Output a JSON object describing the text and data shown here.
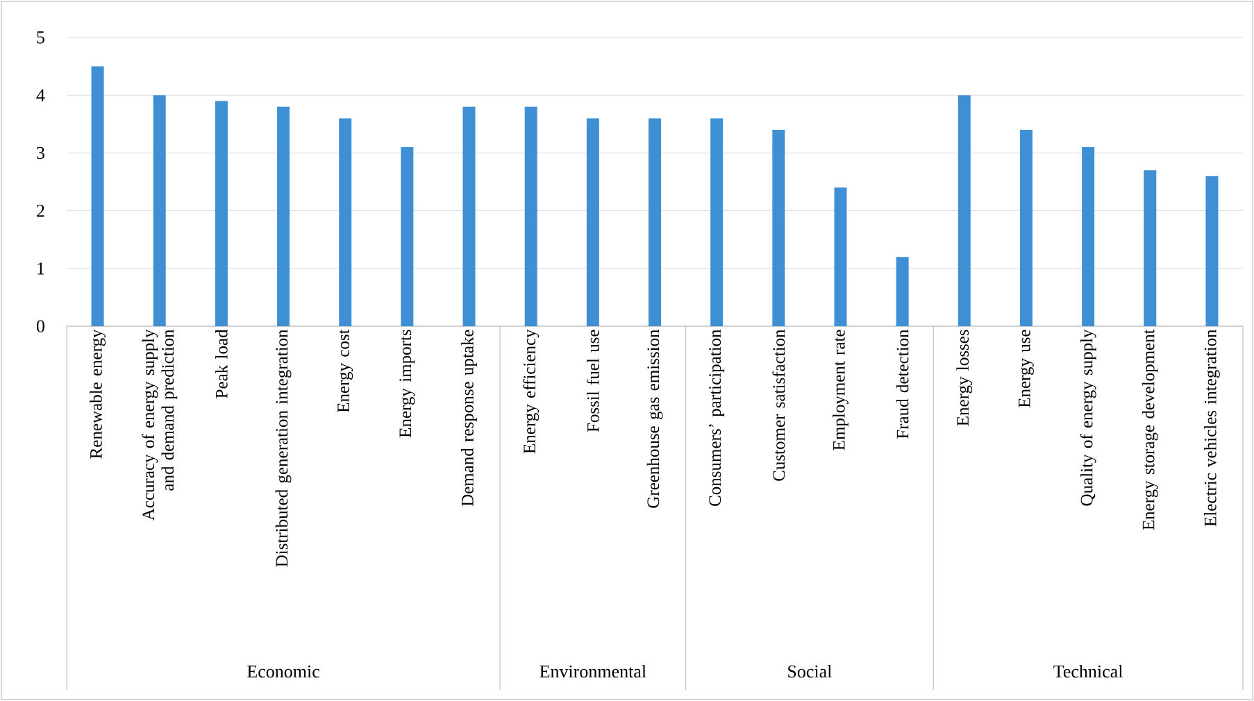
{
  "chart_data": {
    "type": "bar",
    "categories": [
      "Renewable energy",
      "Accuracy of energy supply and demand prediction",
      "Peak load",
      "Distributed generation integration",
      "Energy cost",
      "Energy imports",
      "Demand response uptake",
      "Energy efficiency",
      "Fossil fuel use",
      "Greenhouse gas emission",
      "Consumers’ participation",
      "Customer satisfaction",
      "Employment rate",
      "Fraud detection",
      "Energy losses",
      "Energy use",
      "Quality of energy supply",
      "Energy storage development",
      "Electric vehicles integration"
    ],
    "values": [
      4.5,
      4.0,
      3.9,
      3.8,
      3.6,
      3.1,
      3.8,
      3.8,
      3.6,
      3.6,
      3.6,
      3.4,
      2.4,
      1.2,
      4.0,
      3.4,
      3.1,
      2.7,
      2.6
    ],
    "color": "#3f8fd4",
    "ylim": [
      0,
      5
    ],
    "yticks": [
      0,
      1,
      2,
      3,
      4,
      5
    ],
    "grid": "y",
    "annotations": [
      "Economic",
      "Environmental",
      "Social",
      "Technical"
    ]
  }
}
